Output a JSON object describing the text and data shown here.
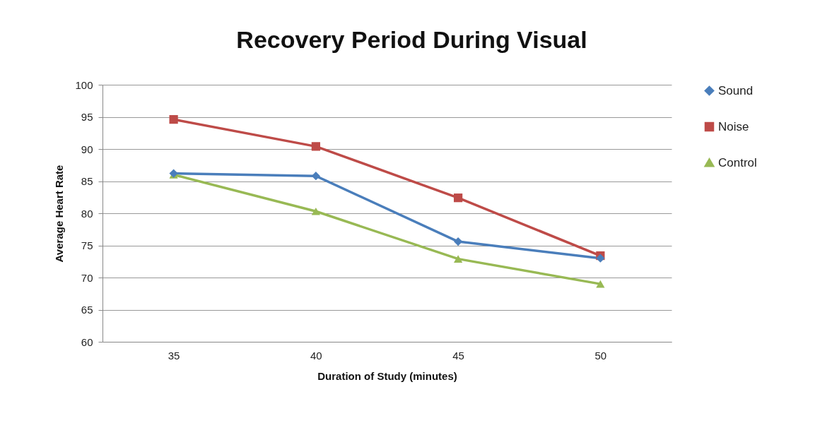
{
  "chart_data": {
    "type": "line",
    "title": "Recovery Period During Visual",
    "xlabel": "Duration of Study (minutes)",
    "ylabel": "Average Heart Rate",
    "categories": [
      "35",
      "40",
      "45",
      "50"
    ],
    "series": [
      {
        "name": "Sound",
        "color": "#4a7ebb",
        "marker": "diamond",
        "values": [
          86.2,
          85.8,
          75.6,
          73.0
        ]
      },
      {
        "name": "Noise",
        "color": "#be4b48",
        "marker": "square",
        "values": [
          94.6,
          90.4,
          82.4,
          73.4
        ]
      },
      {
        "name": "Control",
        "color": "#98b954",
        "marker": "triangle",
        "values": [
          86.0,
          80.3,
          72.9,
          69.0
        ]
      }
    ],
    "ylim": [
      60,
      100
    ],
    "yticks": [
      60,
      65,
      70,
      75,
      80,
      85,
      90,
      95,
      100
    ],
    "grid": "y",
    "legend": "right",
    "line_style": "solid"
  }
}
